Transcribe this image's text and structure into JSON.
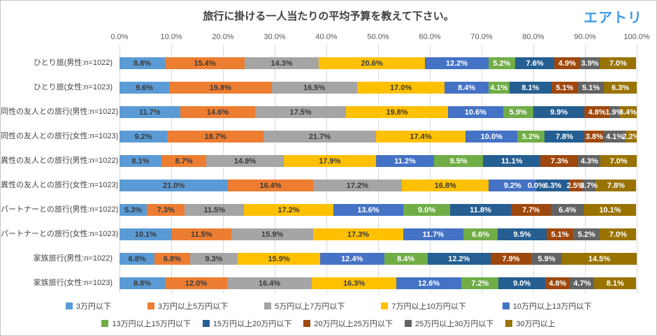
{
  "header": {
    "logo": "エアトリ"
  },
  "chart_data": {
    "type": "bar",
    "subtype": "horizontal-stacked-100",
    "title": "旅行に掛ける一人当たりの平均予算を教えて下さい。",
    "xlabel": "",
    "ylabel": "",
    "xlim": [
      0,
      100
    ],
    "grid": true,
    "legend_position": "bottom",
    "x_ticks": [
      "0.0%",
      "10.0%",
      "20.0%",
      "30.0%",
      "40.0%",
      "50.0%",
      "60.0%",
      "70.0%",
      "80.0%",
      "90.0%",
      "100.0%"
    ],
    "series": [
      {
        "name": "3万円以下",
        "color": "#5B9BD5",
        "label_color": "#3a3a3a"
      },
      {
        "name": "3万円以上5万円以下",
        "color": "#ED7D31",
        "label_color": "#3a3a3a"
      },
      {
        "name": "5万円以上7万円以下",
        "color": "#A5A5A5",
        "label_color": "#3a3a3a"
      },
      {
        "name": "7万円以上10万円以下",
        "color": "#FFC000",
        "label_color": "#3a3a3a"
      },
      {
        "name": "10万円以上13万円以下",
        "color": "#4472C4",
        "label_color": "#ffffff"
      },
      {
        "name": "13万円以上15万円以下",
        "color": "#70AD47",
        "label_color": "#ffffff"
      },
      {
        "name": "15万円以上20万円以下",
        "color": "#255E91",
        "label_color": "#ffffff"
      },
      {
        "name": "20万円以上25万円以下",
        "color": "#9E480E",
        "label_color": "#ffffff"
      },
      {
        "name": "25万円以上30万円以下",
        "color": "#636363",
        "label_color": "#ffffff"
      },
      {
        "name": "30万円以上",
        "color": "#997300",
        "label_color": "#ffffff"
      }
    ],
    "categories": [
      "ひとり旅(男性:n=1022)",
      "ひとり旅(女性:n=1023)",
      "同性の友人との旅行(男性:n=1022)",
      "同性の友人との旅行(女性:n=1023)",
      "異性の友人との旅行(男性:n=1022)",
      "異性の友人との旅行(女性:n=1023)",
      "パートナーとの旅行(男性:n=1022)",
      "パートナーとの旅行(女性:n=1023)",
      "家族旅行(男性:n=1022)",
      "家族旅行(女性:n=1023)"
    ],
    "values": [
      [
        8.8,
        15.4,
        14.3,
        20.6,
        12.2,
        5.2,
        7.6,
        4.9,
        3.9,
        7.0
      ],
      [
        9.6,
        19.8,
        16.5,
        17.0,
        8.4,
        4.1,
        8.1,
        5.1,
        5.1,
        6.3
      ],
      [
        11.7,
        14.6,
        17.5,
        19.8,
        10.6,
        5.9,
        9.9,
        4.8,
        1.9,
        3.4
      ],
      [
        9.2,
        18.7,
        21.7,
        17.4,
        10.0,
        5.2,
        7.8,
        3.8,
        4.1,
        2.2
      ],
      [
        8.1,
        8.7,
        14.9,
        17.9,
        11.2,
        9.5,
        11.1,
        7.3,
        4.3,
        7.0
      ],
      [
        21.0,
        16.4,
        17.2,
        16.8,
        9.2,
        0.0,
        6.3,
        2.5,
        2.7,
        7.8
      ],
      [
        5.3,
        7.3,
        11.5,
        17.2,
        13.6,
        9.0,
        11.8,
        7.7,
        6.4,
        10.1
      ],
      [
        10.1,
        11.5,
        15.9,
        17.3,
        11.7,
        6.6,
        9.5,
        5.1,
        5.2,
        7.0
      ],
      [
        6.8,
        6.8,
        9.3,
        15.9,
        12.4,
        8.4,
        12.2,
        7.9,
        5.9,
        14.5
      ],
      [
        8.8,
        12.0,
        16.4,
        16.3,
        12.6,
        7.2,
        9.0,
        4.8,
        4.7,
        8.1
      ]
    ]
  }
}
